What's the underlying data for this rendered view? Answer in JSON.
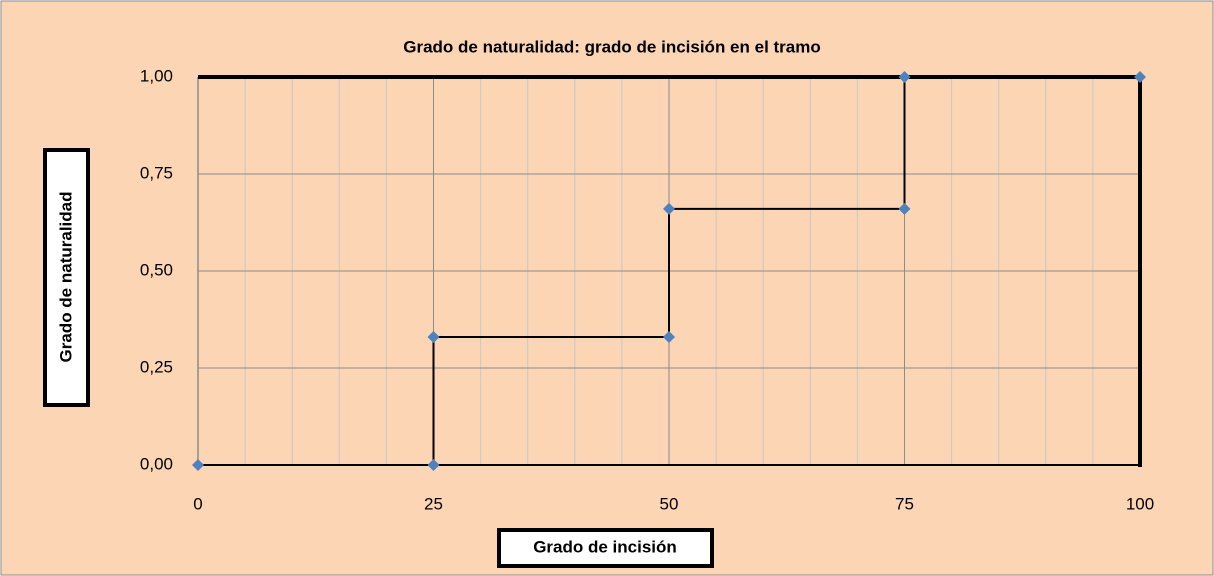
{
  "chart_data": {
    "type": "line",
    "title": "Grado de naturalidad: grado de incisión en el tramo",
    "x_label": "Grado de incisión",
    "y_label": "Grado de naturalidad",
    "x": [
      0,
      25,
      25,
      50,
      50,
      75,
      75,
      100
    ],
    "values": [
      0,
      0,
      0.33,
      0.33,
      0.66,
      0.66,
      1,
      1
    ],
    "line_color": "#000000",
    "marker_color": "#4f81bd",
    "xlim": [
      0,
      100
    ],
    "ylim": [
      0,
      1
    ],
    "xticks": [
      0,
      25,
      50,
      75,
      100
    ],
    "xminorticks": [
      5,
      10,
      15,
      20,
      30,
      35,
      40,
      45,
      55,
      60,
      65,
      70,
      80,
      85,
      90,
      95
    ],
    "yticks": [
      {
        "value": 0,
        "label": "0,00"
      },
      {
        "value": 0.25,
        "label": "0,25"
      },
      {
        "value": 0.5,
        "label": "0,50"
      },
      {
        "value": 0.75,
        "label": "0,75"
      },
      {
        "value": 1,
        "label": "1,00"
      }
    ],
    "grid": true
  }
}
